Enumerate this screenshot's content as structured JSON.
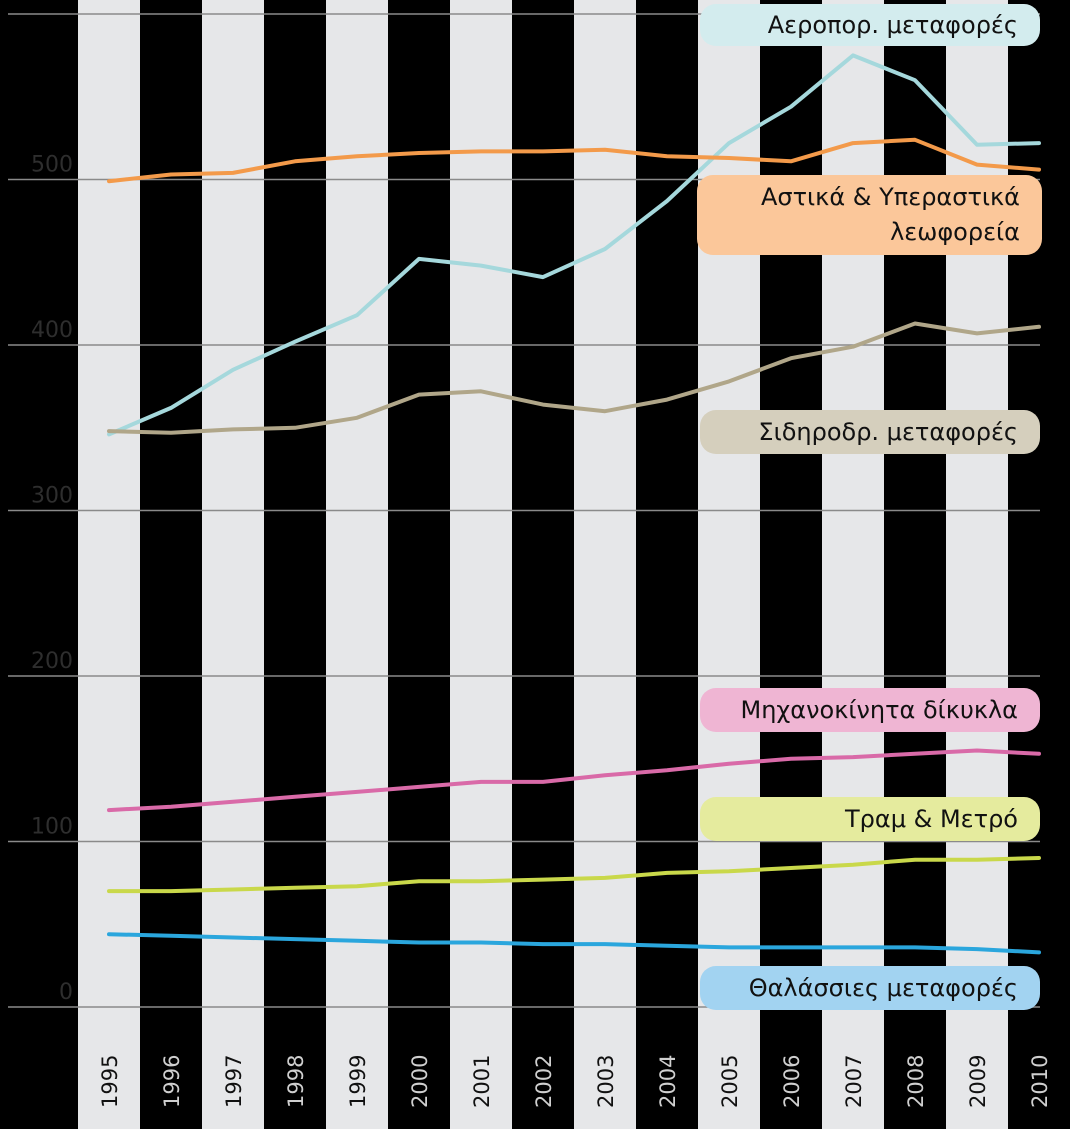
{
  "chart_data": {
    "type": "line",
    "x": [
      1995,
      1996,
      1997,
      1998,
      1999,
      2000,
      2001,
      2002,
      2003,
      2004,
      2005,
      2006,
      2007,
      2008,
      2009,
      2010
    ],
    "ylim": [
      0,
      600
    ],
    "yticks": [
      0,
      100,
      200,
      300,
      400,
      500
    ],
    "grid": true,
    "legend_position": "right",
    "background": "#000000",
    "column_band_color": "#e6e7e9",
    "series": [
      {
        "name": "Αεροπορ. μεταφορές",
        "color": "#a5d8dc",
        "label_bg": "#d3ecee",
        "values": [
          346,
          362,
          385,
          402,
          418,
          452,
          448,
          441,
          458,
          487,
          522,
          544,
          575,
          560,
          521,
          522
        ]
      },
      {
        "name": "Αστικά & Υπεραστικά\nλεωφορεία",
        "color": "#f39a4a",
        "label_bg": "#fbc79a",
        "values": [
          499,
          503,
          504,
          511,
          514,
          516,
          517,
          517,
          518,
          514,
          513,
          511,
          522,
          524,
          509,
          506
        ]
      },
      {
        "name": "Σιδηροδρ. μεταφορές",
        "color": "#b0a689",
        "label_bg": "#d5cfbd",
        "values": [
          348,
          347,
          349,
          350,
          356,
          370,
          372,
          364,
          360,
          367,
          378,
          392,
          399,
          413,
          407,
          411
        ]
      },
      {
        "name": "Μηχανοκίνητα δίκυκλα",
        "color": "#d96aa8",
        "label_bg": "#efb5d3",
        "values": [
          119,
          121,
          124,
          127,
          130,
          133,
          136,
          136,
          140,
          143,
          147,
          150,
          151,
          153,
          155,
          153
        ]
      },
      {
        "name": "Τραμ & Μετρό",
        "color": "#c9d84a",
        "label_bg": "#e5eb9e",
        "values": [
          70,
          70,
          71,
          72,
          73,
          76,
          76,
          77,
          78,
          81,
          82,
          84,
          86,
          89,
          89,
          90
        ]
      },
      {
        "name": "Θαλάσσιες μεταφορές",
        "color": "#2aa6dd",
        "label_bg": "#a2d3f1",
        "values": [
          44,
          43,
          42,
          41,
          40,
          39,
          39,
          38,
          38,
          37,
          36,
          36,
          36,
          36,
          35,
          33
        ]
      }
    ]
  }
}
